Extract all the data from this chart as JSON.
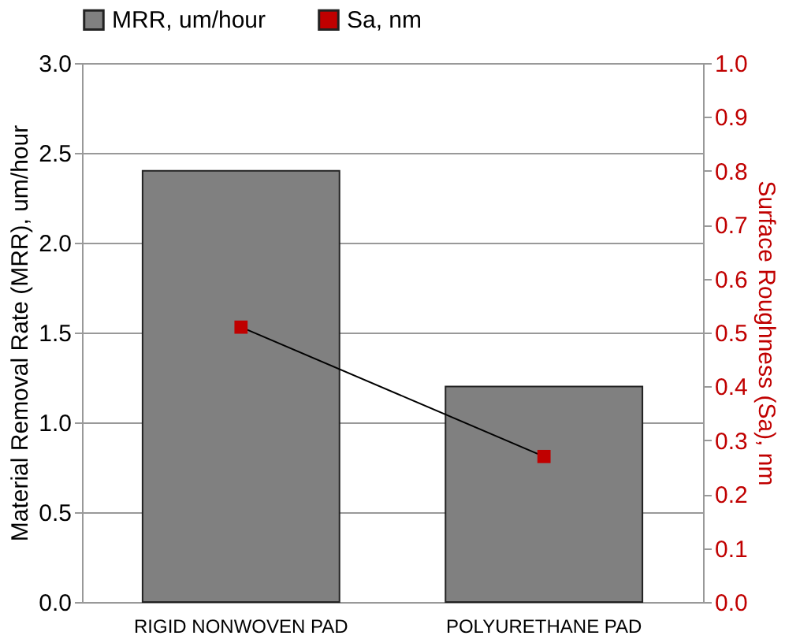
{
  "chart_data": {
    "type": "bar",
    "categories": [
      "RIGID NONWOVEN PAD",
      "POLYURETHANE PAD"
    ],
    "series": [
      {
        "name": "MRR, um/hour",
        "color": "#808080",
        "values": [
          2.4,
          1.2
        ]
      },
      {
        "name": "Sa, nm",
        "type": "line",
        "axis": "y2",
        "color": "#c00000",
        "values": [
          0.51,
          0.27
        ]
      }
    ],
    "ylabel": "Material Removal Rate (MRR), um/hour",
    "y2label": "Surface Roughness (Sa), nm",
    "ylim": [
      0,
      3
    ],
    "yticks": [
      {
        "value": 0,
        "label": "0.0"
      },
      {
        "value": 0.5,
        "label": "0.5"
      },
      {
        "value": 1,
        "label": "1.0"
      },
      {
        "value": 1.5,
        "label": "1.5"
      },
      {
        "value": 2,
        "label": "2.0"
      },
      {
        "value": 2.5,
        "label": "2.5"
      },
      {
        "value": 3,
        "label": "3.0"
      }
    ],
    "y2lim": [
      0,
      1
    ],
    "y2ticks": [
      {
        "value": 0,
        "label": "0.0"
      },
      {
        "value": 0.1,
        "label": "0.1"
      },
      {
        "value": 0.2,
        "label": "0.2"
      },
      {
        "value": 0.3,
        "label": "0.3"
      },
      {
        "value": 0.4,
        "label": "0.4"
      },
      {
        "value": 0.5,
        "label": "0.5"
      },
      {
        "value": 0.6,
        "label": "0.6"
      },
      {
        "value": 0.7,
        "label": "0.7"
      },
      {
        "value": 0.8,
        "label": "0.8"
      },
      {
        "value": 0.9,
        "label": "0.9"
      },
      {
        "value": 1,
        "label": "1.0"
      }
    ],
    "grid": "y",
    "legend": "top",
    "marker": "square",
    "line_style": "solid"
  }
}
